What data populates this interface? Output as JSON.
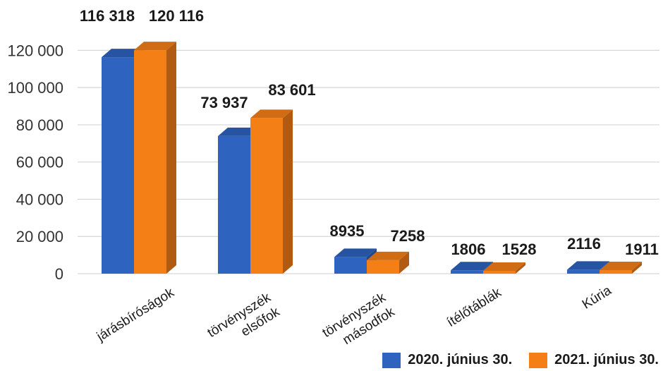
{
  "chart_data": {
    "type": "bar",
    "categories": [
      [
        "járásbíróságok"
      ],
      [
        "törvényszék",
        "elsőfok"
      ],
      [
        "törvényszék",
        "másodfok"
      ],
      [
        "ítélőtáblák"
      ],
      [
        "Kúria"
      ]
    ],
    "series": [
      {
        "name": "2020. június 30.",
        "values": [
          116318,
          73937,
          8935,
          1806,
          2116
        ],
        "labels": [
          "116 318",
          "73 937",
          "8935",
          "1806",
          "2116"
        ],
        "color": "#2e63bf"
      },
      {
        "name": "2021. június 30.",
        "values": [
          120116,
          83601,
          7258,
          1528,
          1911
        ],
        "labels": [
          "120 116",
          "83 601",
          "7258",
          "1528",
          "1911"
        ],
        "color": "#f57f17"
      }
    ],
    "yticks": [
      "0",
      "20 000",
      "40 000",
      "60 000",
      "80 000",
      "100 000",
      "120 000"
    ],
    "ylim": [
      0,
      130000
    ],
    "grid": true,
    "legend_position": "bottom-right",
    "style": "3d-column"
  }
}
